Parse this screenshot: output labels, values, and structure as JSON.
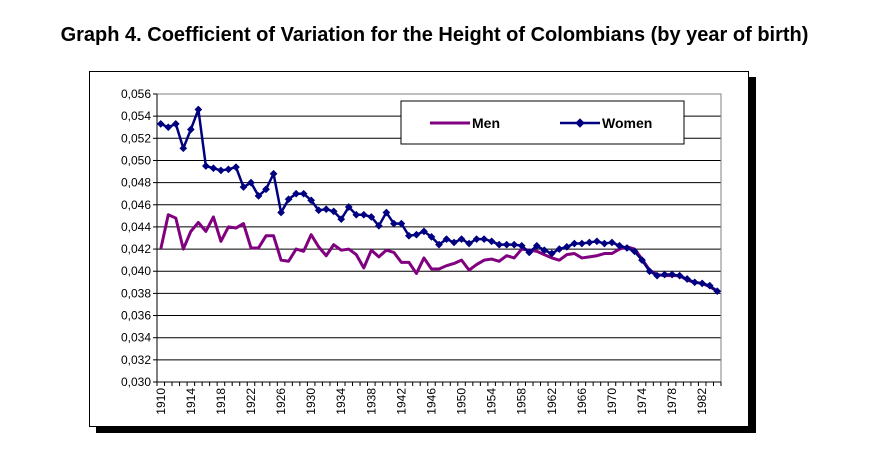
{
  "title": "Graph 4. Coefficient of Variation for the Height of Colombians (by year of birth)",
  "chart_data": {
    "type": "line",
    "title": "Graph 4. Coefficient of Variation for the Height of Colombians (by year of birth)",
    "xlabel": "",
    "ylabel": "",
    "ylim": [
      0.03,
      0.056
    ],
    "y_ticks": [
      "0,030",
      "0,032",
      "0,034",
      "0,036",
      "0,038",
      "0,040",
      "0,042",
      "0,044",
      "0,046",
      "0,048",
      "0,050",
      "0,052",
      "0,054",
      "0,056"
    ],
    "x_ticks": [
      "1910",
      "1914",
      "1918",
      "1922",
      "1926",
      "1930",
      "1934",
      "1938",
      "1942",
      "1946",
      "1950",
      "1954",
      "1958",
      "1962",
      "1966",
      "1970",
      "1974",
      "1978",
      "1982"
    ],
    "x": [
      1910,
      1911,
      1912,
      1913,
      1914,
      1915,
      1916,
      1917,
      1918,
      1919,
      1920,
      1921,
      1922,
      1923,
      1924,
      1925,
      1926,
      1927,
      1928,
      1929,
      1930,
      1931,
      1932,
      1933,
      1934,
      1935,
      1936,
      1937,
      1938,
      1939,
      1940,
      1941,
      1942,
      1943,
      1944,
      1945,
      1946,
      1947,
      1948,
      1949,
      1950,
      1951,
      1952,
      1953,
      1954,
      1955,
      1956,
      1957,
      1958,
      1959,
      1960,
      1961,
      1962,
      1963,
      1964,
      1965,
      1966,
      1967,
      1968,
      1969,
      1970,
      1971,
      1972,
      1973,
      1974,
      1975,
      1976,
      1977,
      1978,
      1979,
      1980,
      1981,
      1982,
      1983,
      1984
    ],
    "grid": true,
    "legend_position": "top-right",
    "series": [
      {
        "name": "Men",
        "color": "#800080",
        "marker": "none",
        "values": [
          0.042,
          0.0451,
          0.0448,
          0.042,
          0.0436,
          0.0444,
          0.0436,
          0.0449,
          0.0427,
          0.044,
          0.0439,
          0.0443,
          0.0421,
          0.0421,
          0.0432,
          0.0432,
          0.041,
          0.0409,
          0.042,
          0.0418,
          0.0433,
          0.0422,
          0.0414,
          0.0424,
          0.0419,
          0.042,
          0.0415,
          0.0403,
          0.0419,
          0.0413,
          0.0419,
          0.0417,
          0.0408,
          0.0408,
          0.0398,
          0.0412,
          0.0402,
          0.0402,
          0.0405,
          0.0407,
          0.041,
          0.0401,
          0.0406,
          0.041,
          0.0411,
          0.0409,
          0.0414,
          0.0412,
          0.042,
          0.0419,
          0.0418,
          0.0415,
          0.0412,
          0.041,
          0.0415,
          0.0416,
          0.0412,
          0.0413,
          0.0414,
          0.0416,
          0.0416,
          0.042,
          0.0422,
          0.042,
          0.0411,
          0.0401,
          0.0397,
          0.0396,
          0.0396,
          0.0396,
          0.0392,
          0.039,
          0.0389,
          0.0386,
          0.0382
        ]
      },
      {
        "name": "Women",
        "color": "#000080",
        "marker": "diamond",
        "values": [
          0.0533,
          0.053,
          0.0533,
          0.0511,
          0.0528,
          0.0546,
          0.0495,
          0.0493,
          0.0491,
          0.0492,
          0.0494,
          0.0476,
          0.048,
          0.0468,
          0.0474,
          0.0488,
          0.0453,
          0.0465,
          0.047,
          0.047,
          0.0464,
          0.0455,
          0.0456,
          0.0454,
          0.0447,
          0.0458,
          0.0451,
          0.0451,
          0.0449,
          0.0441,
          0.0453,
          0.0443,
          0.0443,
          0.0432,
          0.0433,
          0.0436,
          0.0431,
          0.0424,
          0.0429,
          0.0426,
          0.0429,
          0.0425,
          0.0429,
          0.0429,
          0.0427,
          0.0424,
          0.0424,
          0.0424,
          0.0423,
          0.0417,
          0.0423,
          0.0419,
          0.0416,
          0.042,
          0.0422,
          0.0425,
          0.0425,
          0.0426,
          0.0427,
          0.0425,
          0.0426,
          0.0423,
          0.0421,
          0.0418,
          0.041,
          0.04,
          0.0396,
          0.0397,
          0.0397,
          0.0396,
          0.0393,
          0.039,
          0.0389,
          0.0387,
          0.0382
        ]
      }
    ]
  }
}
